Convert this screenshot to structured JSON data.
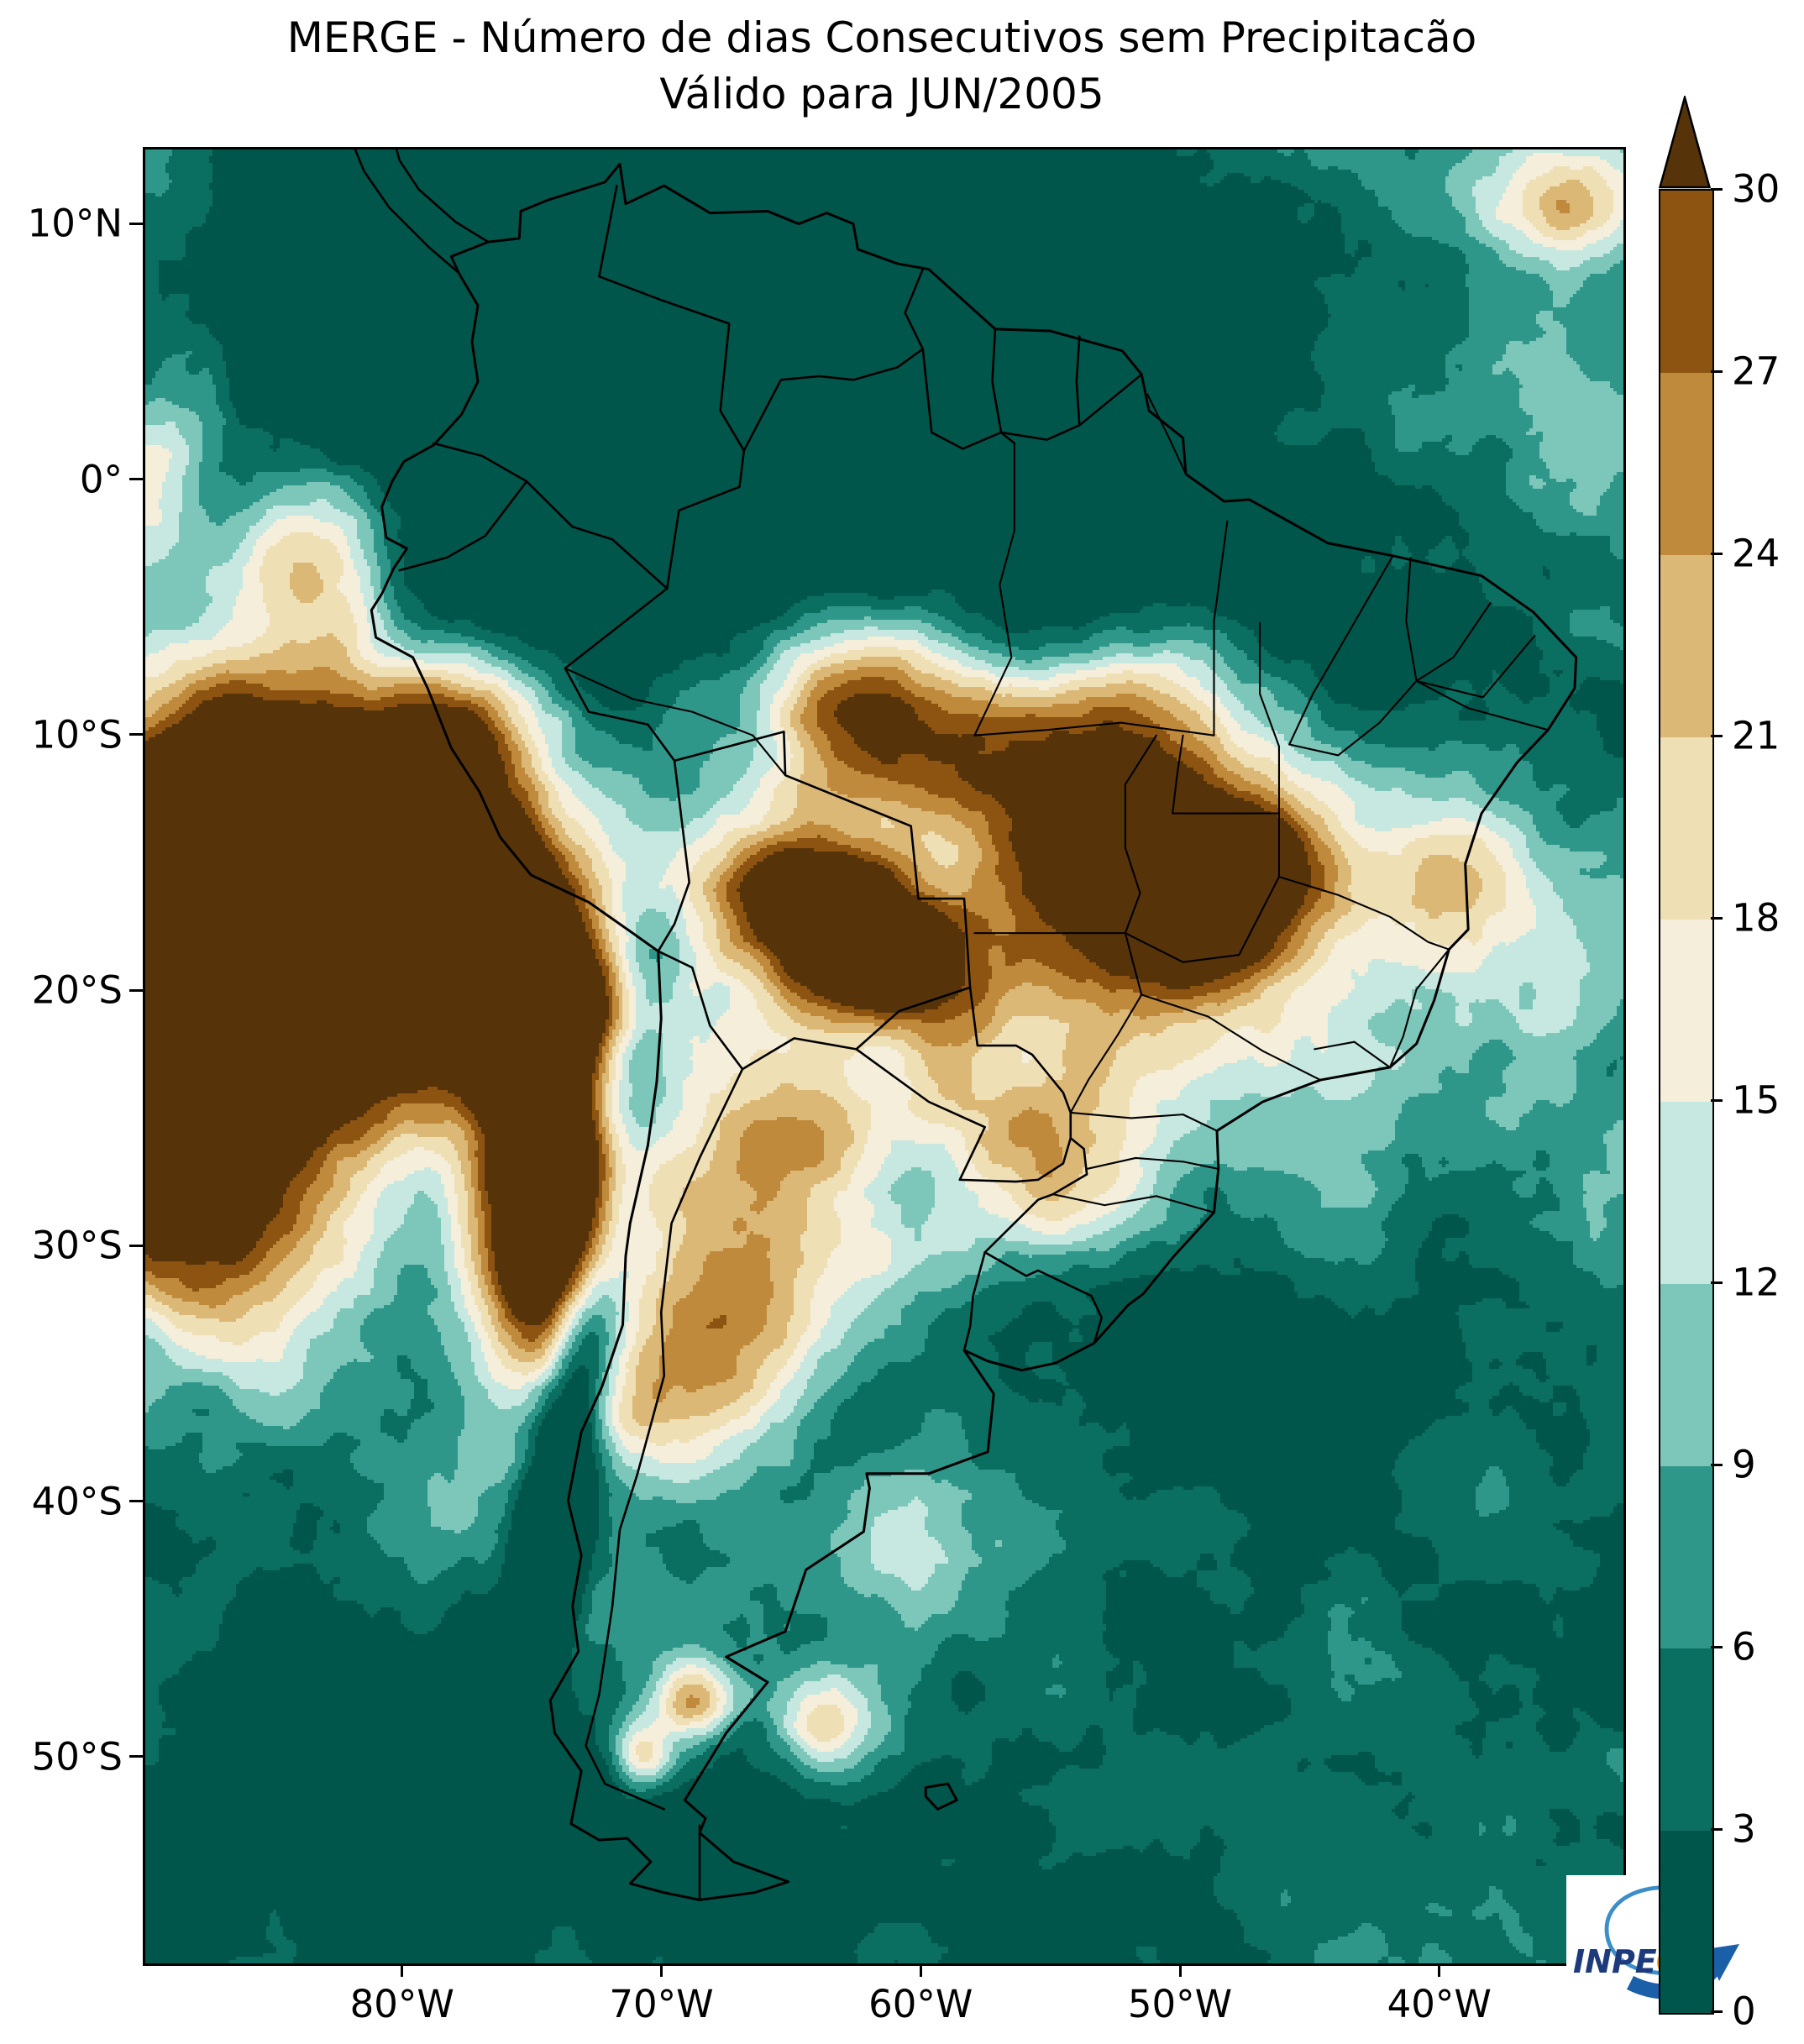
{
  "title": {
    "line1": "MERGE - Número de dias Consecutivos sem Precipitacão",
    "line2": "Válido para JUN/2005"
  },
  "axes": {
    "y_ticks": [
      "10°N",
      "0°",
      "10°S",
      "20°S",
      "30°S",
      "40°S",
      "50°S"
    ],
    "x_ticks": [
      "80°W",
      "70°W",
      "60°W",
      "50°W",
      "40°W"
    ]
  },
  "colorbar": {
    "tick_labels": [
      "0",
      "3",
      "6",
      "9",
      "12",
      "15",
      "18",
      "21",
      "24",
      "27",
      "30"
    ],
    "bin_colors": [
      "#00564a",
      "#0a6e61",
      "#2f968a",
      "#7cc7ba",
      "#c6e8e1",
      "#f4eedb",
      "#efdfb5",
      "#dcb877",
      "#c08a3c",
      "#8c5410"
    ],
    "over_color": "#57330a"
  },
  "logo": {
    "text": "INPE"
  },
  "chart_data": {
    "type": "heatmap",
    "title": "MERGE - Número de dias Consecutivos sem Precipitacão",
    "subtitle": "Válido para JUN/2005",
    "region": "South America",
    "variable": "consecutive days without precipitation",
    "colorbar_ticks": [
      0,
      3,
      6,
      9,
      12,
      15,
      18,
      21,
      24,
      27,
      30
    ],
    "colorbar_bin_edges": [
      0,
      3,
      6,
      9,
      12,
      15,
      18,
      21,
      24,
      27,
      30
    ],
    "colorbar_extends_above_max": true,
    "x_axis_ticks": [
      "80°W",
      "70°W",
      "60°W",
      "50°W",
      "40°W"
    ],
    "y_axis_ticks": [
      "10°N",
      "0°",
      "10°S",
      "20°S",
      "30°S",
      "40°S",
      "50°S"
    ],
    "legend_position": "right"
  }
}
